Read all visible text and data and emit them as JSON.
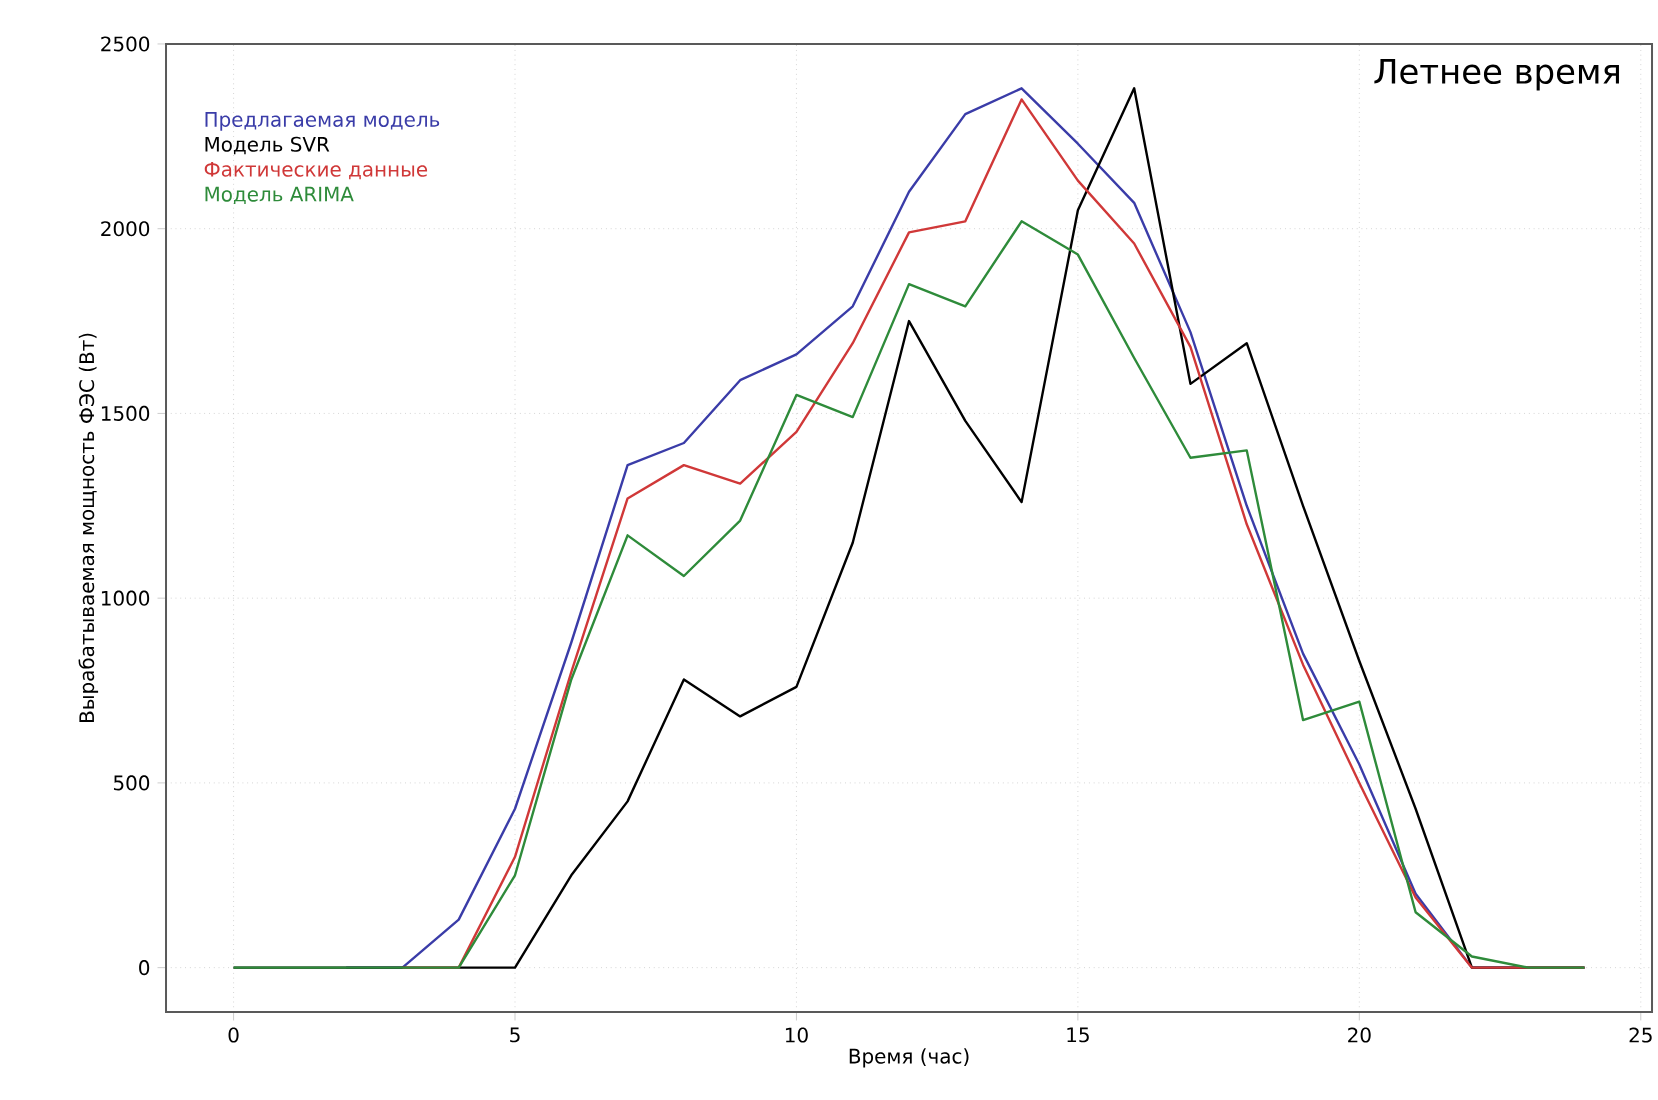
{
  "chart_data": {
    "type": "line",
    "xlabel": "Время (час)",
    "ylabel": "Вырабатываемая мощность ФЭС (Вт)",
    "annotations": [
      "Летнее время"
    ],
    "x": [
      0,
      1,
      2,
      3,
      4,
      5,
      6,
      7,
      8,
      9,
      10,
      11,
      12,
      13,
      14,
      15,
      16,
      17,
      18,
      19,
      20,
      21,
      22,
      23,
      24
    ],
    "series": [
      {
        "name": "Предлагаемая модель",
        "color": "#3a3ca8",
        "values": [
          null,
          null,
          0,
          0,
          130,
          430,
          880,
          1360,
          1420,
          1590,
          1660,
          1790,
          2100,
          2310,
          2380,
          2230,
          2070,
          1720,
          1250,
          850,
          550,
          200,
          0,
          0,
          0
        ]
      },
      {
        "name": "Модель SVR",
        "color": "#000000",
        "values": [
          0,
          0,
          0,
          0,
          0,
          0,
          250,
          450,
          780,
          680,
          760,
          1150,
          1750,
          1480,
          1260,
          2050,
          2380,
          1580,
          1690,
          1250,
          830,
          430,
          0,
          0,
          0
        ]
      },
      {
        "name": "Фактические данные",
        "color": "#d03838",
        "values": [
          null,
          null,
          null,
          0,
          0,
          300,
          800,
          1270,
          1360,
          1310,
          1450,
          1690,
          1990,
          2020,
          2350,
          2130,
          1960,
          1680,
          1200,
          820,
          500,
          190,
          0,
          0,
          0
        ]
      },
      {
        "name": "Модель ARIMA",
        "color": "#2e8b3a",
        "values": [
          0,
          0,
          0,
          0,
          0,
          250,
          780,
          1170,
          1060,
          1210,
          1550,
          1490,
          1850,
          1790,
          2020,
          1930,
          1650,
          1380,
          1400,
          670,
          720,
          150,
          30,
          0,
          0
        ]
      }
    ],
    "xlim": [
      -1.2,
      25.2
    ],
    "ylim": [
      -120,
      2500
    ],
    "xticks": [
      0,
      5,
      10,
      15,
      20,
      25
    ],
    "yticks": [
      0,
      500,
      1000,
      1500,
      2000,
      2500
    ],
    "grid": true,
    "legend": "top left",
    "marker": "none",
    "line_style": "solid"
  }
}
